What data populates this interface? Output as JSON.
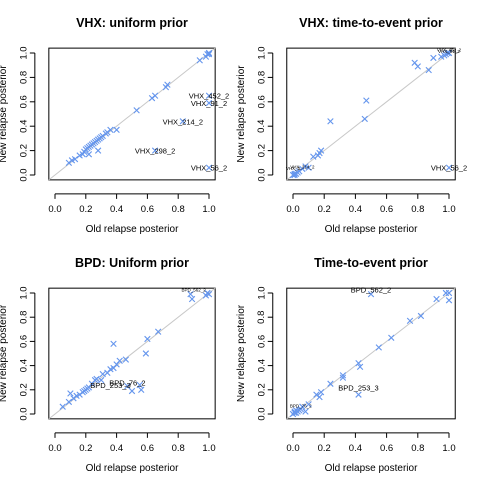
{
  "colors": {
    "points": "#6495ed",
    "identity_line": "#c8c8c8",
    "axis": "#000000"
  },
  "chart_data": [
    {
      "type": "scatter",
      "title": "VHX: uniform prior",
      "xlabel": "Old relapse posterior",
      "ylabel": "New relapse posterior",
      "xlim": [
        0,
        1
      ],
      "ylim": [
        0,
        1
      ],
      "xticks": [
        "0.0",
        "0.2",
        "0.4",
        "0.6",
        "0.8",
        "1.0"
      ],
      "yticks": [
        "0.0",
        "0.2",
        "0.4",
        "0.6",
        "0.8",
        "1.0"
      ],
      "reference_line": "y = x",
      "points": [
        [
          0.09,
          0.1
        ],
        [
          0.11,
          0.12
        ],
        [
          0.13,
          0.13
        ],
        [
          0.16,
          0.16
        ],
        [
          0.18,
          0.17
        ],
        [
          0.19,
          0.19
        ],
        [
          0.2,
          0.21
        ],
        [
          0.21,
          0.22
        ],
        [
          0.22,
          0.23
        ],
        [
          0.23,
          0.24
        ],
        [
          0.24,
          0.25
        ],
        [
          0.25,
          0.26
        ],
        [
          0.26,
          0.27
        ],
        [
          0.27,
          0.28
        ],
        [
          0.28,
          0.29
        ],
        [
          0.29,
          0.3
        ],
        [
          0.3,
          0.31
        ],
        [
          0.31,
          0.32
        ],
        [
          0.33,
          0.34
        ],
        [
          0.34,
          0.35
        ],
        [
          0.36,
          0.37
        ],
        [
          0.28,
          0.2
        ],
        [
          0.22,
          0.17
        ],
        [
          0.4,
          0.37
        ],
        [
          0.53,
          0.53
        ],
        [
          0.63,
          0.63
        ],
        [
          0.65,
          0.65
        ],
        [
          0.72,
          0.72
        ],
        [
          0.73,
          0.74
        ],
        [
          0.83,
          0.44
        ],
        [
          0.65,
          0.2
        ],
        [
          0.94,
          0.94
        ],
        [
          0.98,
          0.97
        ],
        [
          0.99,
          0.99
        ],
        [
          1.0,
          1.0
        ],
        [
          1.0,
          0.99
        ],
        [
          1.0,
          0.65
        ],
        [
          1.0,
          0.59
        ],
        [
          1.0,
          0.06
        ]
      ],
      "annotations": [
        {
          "text": "VHX_452_2",
          "x": 1.0,
          "y": 0.65
        },
        {
          "text": "VHX_91_2",
          "x": 1.0,
          "y": 0.59
        },
        {
          "text": "VHX_214_2",
          "x": 0.83,
          "y": 0.44
        },
        {
          "text": "VHX_298_2",
          "x": 0.65,
          "y": 0.2
        },
        {
          "text": "VHX_56_2",
          "x": 1.0,
          "y": 0.06
        }
      ]
    },
    {
      "type": "scatter",
      "title": "VHX: time-to-event prior",
      "xlabel": "Old relapse posterior",
      "ylabel": "New relapse posterior",
      "xlim": [
        0,
        1
      ],
      "ylim": [
        0,
        1
      ],
      "xticks": [
        "0.0",
        "0.2",
        "0.4",
        "0.6",
        "0.8",
        "1.0"
      ],
      "yticks": [
        "0.0",
        "0.2",
        "0.4",
        "0.6",
        "0.8",
        "1.0"
      ],
      "reference_line": "y = x",
      "points": [
        [
          0.0,
          0.0
        ],
        [
          0.01,
          0.01
        ],
        [
          0.01,
          0.0
        ],
        [
          0.02,
          0.01
        ],
        [
          0.03,
          0.02
        ],
        [
          0.04,
          0.03
        ],
        [
          0.06,
          0.05
        ],
        [
          0.08,
          0.07
        ],
        [
          0.1,
          0.06
        ],
        [
          0.13,
          0.15
        ],
        [
          0.16,
          0.16
        ],
        [
          0.17,
          0.18
        ],
        [
          0.18,
          0.2
        ],
        [
          0.24,
          0.44
        ],
        [
          0.46,
          0.46
        ],
        [
          0.47,
          0.61
        ],
        [
          0.78,
          0.92
        ],
        [
          0.8,
          0.89
        ],
        [
          0.87,
          0.86
        ],
        [
          0.9,
          0.96
        ],
        [
          0.95,
          0.97
        ],
        [
          0.97,
          0.98
        ],
        [
          0.98,
          0.99
        ],
        [
          0.99,
          1.0
        ],
        [
          1.0,
          1.0
        ],
        [
          1.0,
          0.06
        ]
      ],
      "annotations": [
        {
          "text": "VHX_452_2",
          "x": 1.0,
          "y": 1.02,
          "size": "tiny"
        },
        {
          "text": "VHX_91_2",
          "x": 1.0,
          "y": 1.01,
          "size": "tiny"
        },
        {
          "text": "VHX_56_2",
          "x": 1.0,
          "y": 0.06
        },
        {
          "text": "VHX_2",
          "x": 0.0,
          "y": 0.05,
          "size": "tiny"
        },
        {
          "text": "VHX_214_2",
          "x": 0.06,
          "y": 0.06,
          "size": "tiny"
        }
      ]
    },
    {
      "type": "scatter",
      "title": "BPD: Uniform prior",
      "xlabel": "Old relapse posterior",
      "ylabel": "New relapse posterior",
      "xlim": [
        0,
        1
      ],
      "ylim": [
        0,
        1
      ],
      "xticks": [
        "0.0",
        "0.2",
        "0.4",
        "0.6",
        "0.8",
        "1.0"
      ],
      "yticks": [
        "0.0",
        "0.2",
        "0.4",
        "0.6",
        "0.8",
        "1.0"
      ],
      "reference_line": "y = x",
      "points": [
        [
          0.05,
          0.06
        ],
        [
          0.09,
          0.1
        ],
        [
          0.1,
          0.17
        ],
        [
          0.12,
          0.13
        ],
        [
          0.14,
          0.15
        ],
        [
          0.16,
          0.16
        ],
        [
          0.18,
          0.18
        ],
        [
          0.19,
          0.19
        ],
        [
          0.2,
          0.2
        ],
        [
          0.21,
          0.21
        ],
        [
          0.22,
          0.22
        ],
        [
          0.24,
          0.25
        ],
        [
          0.26,
          0.28
        ],
        [
          0.27,
          0.29
        ],
        [
          0.3,
          0.28
        ],
        [
          0.31,
          0.33
        ],
        [
          0.34,
          0.34
        ],
        [
          0.36,
          0.37
        ],
        [
          0.38,
          0.38
        ],
        [
          0.4,
          0.41
        ],
        [
          0.42,
          0.44
        ],
        [
          0.38,
          0.58
        ],
        [
          0.46,
          0.45
        ],
        [
          0.47,
          0.23
        ],
        [
          0.5,
          0.19
        ],
        [
          0.55,
          0.24
        ],
        [
          0.56,
          0.2
        ],
        [
          0.59,
          0.5
        ],
        [
          0.6,
          0.62
        ],
        [
          0.67,
          0.68
        ],
        [
          0.88,
          0.99
        ],
        [
          0.89,
          0.95
        ],
        [
          0.98,
          0.98
        ],
        [
          0.99,
          1.0
        ],
        [
          1.0,
          0.99
        ]
      ],
      "annotations": [
        {
          "text": "BPD_562_2",
          "x": 0.9,
          "y": 1.02,
          "size": "tiny"
        },
        {
          "text": "BPD_76_2",
          "x": 0.47,
          "y": 0.26
        },
        {
          "text": "BPD_253_3",
          "x": 0.36,
          "y": 0.24
        }
      ]
    },
    {
      "type": "scatter",
      "title": "Time-to-event prior",
      "xlabel": "Old relapse posterior",
      "ylabel": "New relapse posterior",
      "xlim": [
        0,
        1
      ],
      "ylim": [
        0,
        1
      ],
      "xticks": [
        "0.0",
        "0.2",
        "0.4",
        "0.6",
        "0.8",
        "1.0"
      ],
      "yticks": [
        "0.0",
        "0.2",
        "0.4",
        "0.6",
        "0.8",
        "1.0"
      ],
      "reference_line": "y = x",
      "points": [
        [
          0.0,
          0.0
        ],
        [
          0.01,
          0.01
        ],
        [
          0.01,
          0.02
        ],
        [
          0.02,
          0.01
        ],
        [
          0.02,
          0.03
        ],
        [
          0.03,
          0.02
        ],
        [
          0.04,
          0.03
        ],
        [
          0.05,
          0.04
        ],
        [
          0.06,
          0.06
        ],
        [
          0.08,
          0.02
        ],
        [
          0.1,
          0.08
        ],
        [
          0.15,
          0.16
        ],
        [
          0.17,
          0.14
        ],
        [
          0.18,
          0.18
        ],
        [
          0.24,
          0.25
        ],
        [
          0.32,
          0.3
        ],
        [
          0.32,
          0.32
        ],
        [
          0.42,
          0.16
        ],
        [
          0.42,
          0.42
        ],
        [
          0.43,
          0.39
        ],
        [
          0.5,
          0.99
        ],
        [
          0.55,
          0.55
        ],
        [
          0.63,
          0.63
        ],
        [
          0.75,
          0.77
        ],
        [
          0.82,
          0.81
        ],
        [
          0.92,
          0.95
        ],
        [
          0.98,
          1.0
        ],
        [
          1.0,
          1.0
        ],
        [
          1.0,
          0.94
        ]
      ],
      "annotations": [
        {
          "text": "BPD_562_2",
          "x": 0.5,
          "y": 1.03
        },
        {
          "text": "BPD_253_3",
          "x": 0.42,
          "y": 0.22
        },
        {
          "text": "BPD_76_2",
          "x": 0.05,
          "y": 0.06,
          "size": "tiny"
        }
      ]
    }
  ]
}
